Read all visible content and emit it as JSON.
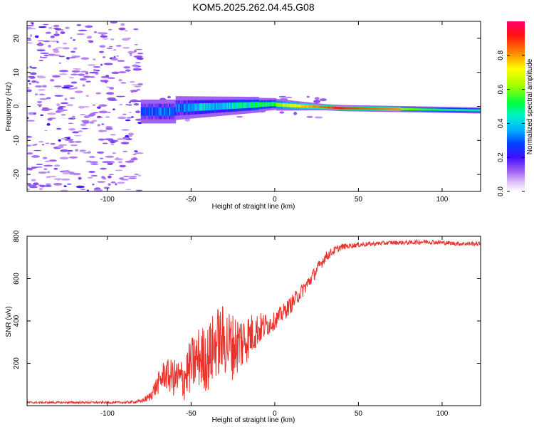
{
  "title": "KOM5.2025.262.04.45.G08",
  "chart_data": [
    {
      "type": "heatmap",
      "xlabel": "Height of straight line (km)",
      "ylabel": "Frequency (Hz)",
      "xlim": [
        -148,
        123
      ],
      "ylim": [
        -25,
        25
      ],
      "xticks": [
        -100,
        -50,
        0,
        50,
        100
      ],
      "yticks": [
        -20,
        -10,
        0,
        10,
        20
      ],
      "colorbar": {
        "label": "Normalized spectral amplitude",
        "range": [
          0,
          1
        ],
        "ticks": [
          "0.0",
          "0.2",
          "0.4",
          "0.6",
          "0.8"
        ],
        "colors": [
          "#ffffff",
          "#c08af0",
          "#7a1ff0",
          "#1a00ff",
          "#0090ff",
          "#00e8f0",
          "#00ff50",
          "#b8ff00",
          "#ffff00",
          "#ff9000",
          "#ff1000",
          "#ff0070"
        ]
      },
      "description_points": [
        {
          "x": -120,
          "y": 23,
          "amp": 0.15
        },
        {
          "x": -110,
          "y": 10,
          "amp": 0.1
        },
        {
          "x": -100,
          "y": -18,
          "amp": 0.15
        },
        {
          "x": -60,
          "y": -2,
          "amp": 0.35
        },
        {
          "x": -30,
          "y": 0,
          "amp": 0.45
        },
        {
          "x": -10,
          "y": 0.5,
          "amp": 0.55
        },
        {
          "x": 5,
          "y": 0,
          "amp": 0.9
        },
        {
          "x": 40,
          "y": -0.5,
          "amp": 0.95
        },
        {
          "x": 80,
          "y": -1,
          "amp": 0.7
        },
        {
          "x": 120,
          "y": -1,
          "amp": 0.5
        }
      ]
    },
    {
      "type": "line",
      "xlabel": "Height of straight line (km)",
      "ylabel": "SNR (v/v)",
      "xlim": [
        -148,
        123
      ],
      "ylim": [
        0,
        800
      ],
      "xticks": [
        -100,
        -50,
        0,
        50,
        100
      ],
      "yticks": [
        200,
        400,
        600,
        800
      ],
      "color": "#e8322a",
      "series": [
        {
          "name": "SNR",
          "x": [
            -148,
            -140,
            -120,
            -100,
            -90,
            -80,
            -75,
            -70,
            -66,
            -60,
            -55,
            -50,
            -45,
            -40,
            -35,
            -30,
            -25,
            -20,
            -15,
            -10,
            -5,
            0,
            5,
            10,
            15,
            20,
            25,
            30,
            35,
            40,
            45,
            50,
            60,
            70,
            80,
            90,
            100,
            110,
            123
          ],
          "values": [
            15,
            15,
            15,
            15,
            15,
            20,
            40,
            100,
            150,
            130,
            120,
            190,
            230,
            220,
            300,
            310,
            280,
            300,
            330,
            360,
            380,
            400,
            440,
            480,
            530,
            580,
            640,
            700,
            730,
            750,
            755,
            760,
            765,
            770,
            770,
            775,
            770,
            765,
            765
          ],
          "amplitude": [
            5,
            5,
            5,
            5,
            5,
            8,
            20,
            50,
            70,
            90,
            110,
            130,
            150,
            160,
            170,
            170,
            160,
            140,
            110,
            80,
            60,
            40,
            40,
            40,
            35,
            35,
            30,
            25,
            20,
            15,
            12,
            12,
            10,
            10,
            10,
            12,
            10,
            10,
            10
          ]
        }
      ]
    }
  ]
}
